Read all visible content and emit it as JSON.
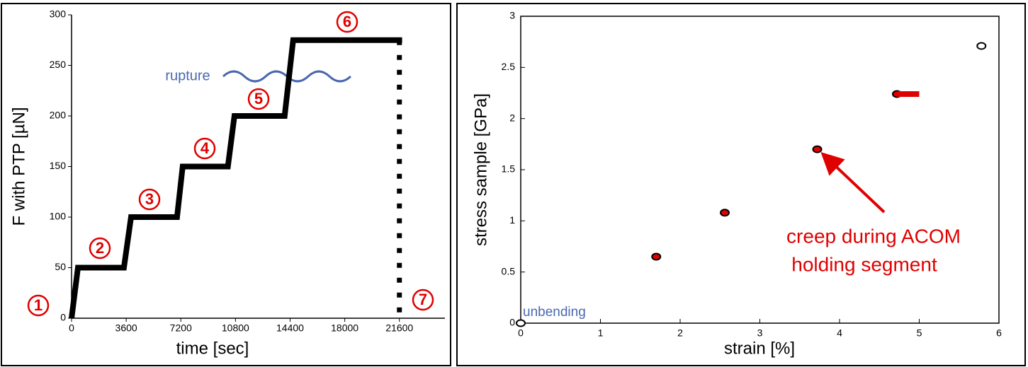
{
  "chart_data": [
    {
      "type": "line",
      "xlabel": "time [sec]",
      "ylabel": "F with PTP [µN]",
      "xlim": [
        0,
        24600
      ],
      "ylim": [
        0,
        300
      ],
      "xticks": [
        0,
        3600,
        7200,
        10800,
        14400,
        18000,
        21600
      ],
      "yticks": [
        0,
        50,
        100,
        150,
        200,
        250,
        300
      ],
      "series": [
        {
          "color": "#000000",
          "style": "solid",
          "x": [
            0,
            420,
            3450,
            3920,
            6950,
            7320,
            10300,
            10730,
            14040,
            14600,
            21780
          ],
          "values": [
            0,
            50,
            50,
            100,
            100,
            150,
            150,
            200,
            200,
            275,
            275
          ]
        },
        {
          "color": "#000000",
          "style": "dotted",
          "x": [
            21600,
            21600
          ],
          "values": [
            275,
            0
          ]
        }
      ],
      "annotations": [
        "1",
        "2",
        "3",
        "4",
        "5",
        "6",
        "7",
        "rupture"
      ]
    },
    {
      "type": "scatter",
      "xlabel": "strain [%]",
      "ylabel": "stress sample [GPa]",
      "xlim": [
        0,
        6
      ],
      "ylim": [
        0,
        3
      ],
      "xticks": [
        0,
        1,
        2,
        3,
        4,
        5,
        6
      ],
      "yticks": [
        0,
        0.5,
        1,
        1.5,
        2,
        2.5,
        3
      ],
      "series": [
        {
          "color": "#000000",
          "marker": "open",
          "x": [
            0,
            5.78
          ],
          "values": [
            0,
            2.71
          ]
        },
        {
          "color": "#e00000",
          "marker": "filled",
          "x": [
            1.7,
            2.56,
            3.72,
            4.72
          ],
          "values": [
            0.65,
            1.08,
            1.7,
            2.24
          ]
        },
        {
          "color": "#e00000",
          "marker": "segment",
          "x": [
            4.72,
            5.0
          ],
          "values": [
            2.24,
            2.24
          ]
        }
      ],
      "annotations": [
        "creep during ACOM",
        "holding segment",
        "unbending"
      ]
    }
  ]
}
